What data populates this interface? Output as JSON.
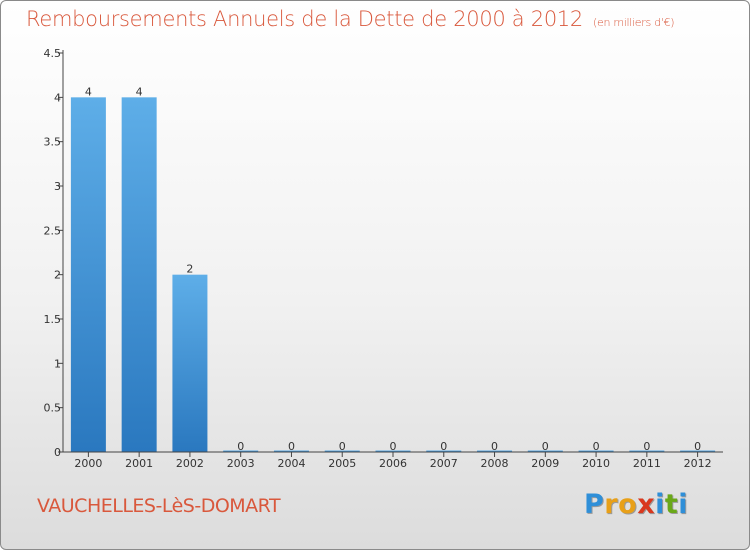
{
  "header": {
    "title": "Remboursements Annuels de la Dette de 2000 à 2012",
    "unit": "(en milliers d'€)"
  },
  "footer": {
    "commune": "VAUCHELLES-LèS-DOMART",
    "logo": [
      "P",
      "r",
      "o",
      "x",
      "i",
      "t",
      "i"
    ],
    "logo_colors": [
      "#2f8fd8",
      "#e8a018",
      "#e8a018",
      "#d9381e",
      "#2f8fd8",
      "#6aa818",
      "#2f8fd8"
    ]
  },
  "chart_data": {
    "type": "bar",
    "title": "Remboursements Annuels de la Dette de 2000 à 2012",
    "categories": [
      "2000",
      "2001",
      "2002",
      "2003",
      "2004",
      "2005",
      "2006",
      "2007",
      "2008",
      "2009",
      "2010",
      "2011",
      "2012"
    ],
    "values": [
      4,
      4,
      2,
      0,
      0,
      0,
      0,
      0,
      0,
      0,
      0,
      0,
      0
    ],
    "data_labels": [
      "4",
      "4",
      "2",
      "0",
      "0",
      "0",
      "0",
      "0",
      "0",
      "0",
      "0",
      "0",
      "0"
    ],
    "yticks": [
      0,
      0.5,
      1,
      1.5,
      2,
      2.5,
      3,
      3.5,
      4,
      4.5
    ],
    "ytick_labels": [
      "0",
      "0.5",
      "1",
      "1.5",
      "2",
      "2.5",
      "3",
      "3.5",
      "4",
      "4.5"
    ],
    "ylim": [
      0,
      4.5
    ],
    "grid": false,
    "bar_color": "#3a8fd4"
  }
}
